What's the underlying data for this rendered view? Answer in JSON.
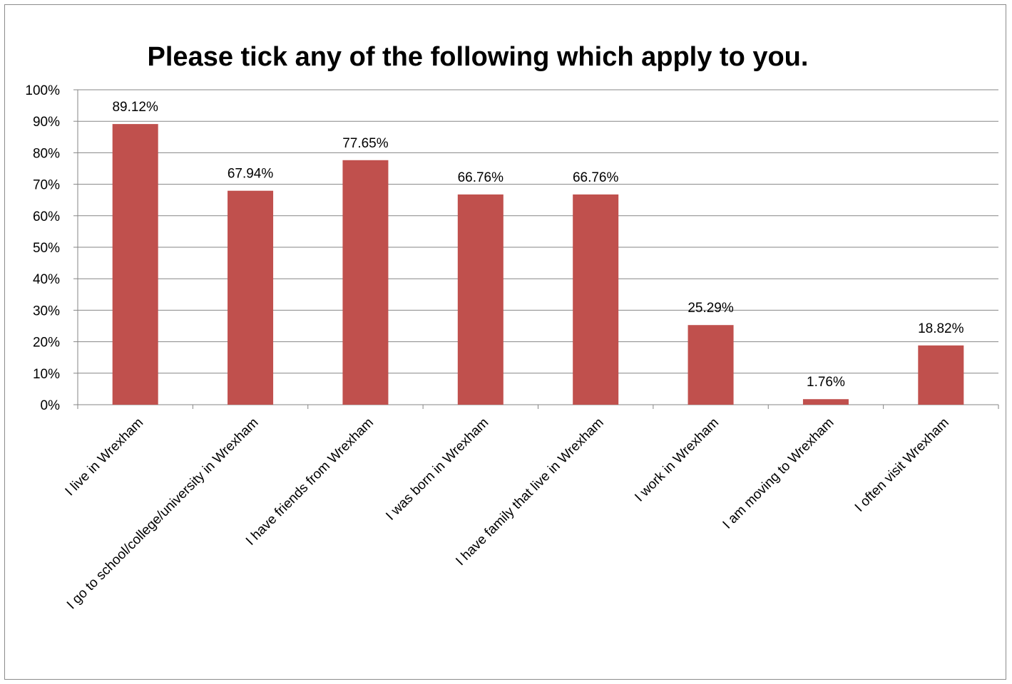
{
  "chart_data": {
    "type": "bar",
    "title": "Please tick any of the following which apply to you.",
    "xlabel": "",
    "ylabel": "",
    "categories": [
      "I live in Wrexham",
      "I go to school/college/university in Wrexham",
      "I have friends from Wrexham",
      "I was born in Wrexham",
      "I have family that live in Wrexham",
      "I work in Wrexham",
      "I am moving to Wrexham",
      "I often visit Wrexham"
    ],
    "values": [
      89.12,
      67.94,
      77.65,
      66.76,
      66.76,
      25.29,
      1.76,
      18.82
    ],
    "data_labels": [
      "89.12%",
      "67.94%",
      "77.65%",
      "66.76%",
      "66.76%",
      "25.29%",
      "1.76%",
      "18.82%"
    ],
    "ylim": [
      0,
      100
    ],
    "y_ticks": [
      "0%",
      "10%",
      "20%",
      "30%",
      "40%",
      "50%",
      "60%",
      "70%",
      "80%",
      "90%",
      "100%"
    ],
    "grid": true,
    "legend": "none",
    "bar_color": "#c0504d",
    "grid_color": "#868686"
  }
}
